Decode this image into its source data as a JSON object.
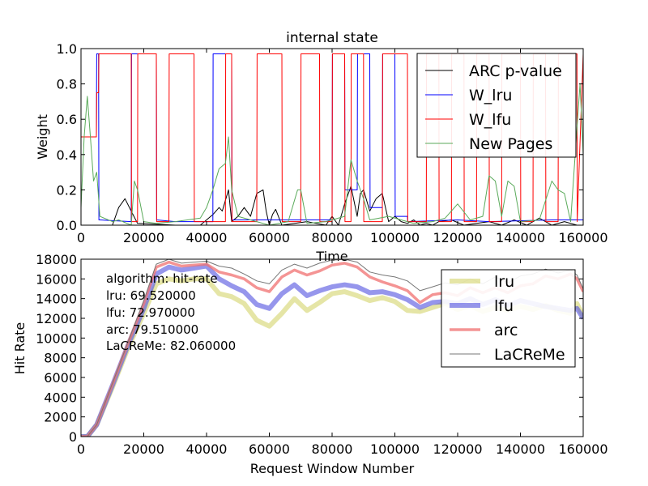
{
  "chart_data": [
    {
      "type": "line",
      "title": "internal state",
      "xlabel": "Time",
      "ylabel": "Weight",
      "xlim": [
        0,
        160000
      ],
      "ylim": [
        0,
        1.0
      ],
      "x_ticks": [
        "0",
        "20000",
        "40000",
        "60000",
        "80000",
        "100000",
        "120000",
        "140000",
        "160000"
      ],
      "y_ticks": [
        "0.0",
        "0.2",
        "0.4",
        "0.6",
        "0.8",
        "1.0"
      ],
      "legend_position": "top-right",
      "series": [
        {
          "name": "ARC p-value",
          "color": "#000000",
          "x": [
            0,
            10000,
            12000,
            14000,
            16000,
            18000,
            30000,
            38000,
            40000,
            42000,
            44000,
            45000,
            47000,
            48000,
            50000,
            52000,
            54000,
            56000,
            58000,
            59000,
            60000,
            61000,
            62000,
            64000,
            72000,
            78000,
            80000,
            82000,
            84000,
            86000,
            88000,
            89000,
            90000,
            92000,
            94000,
            96000,
            98000,
            100000,
            102000,
            104000,
            106000,
            108000,
            110000,
            112000,
            114000,
            118000,
            122000,
            126000,
            130000,
            134000,
            138000,
            142000,
            146000,
            150000,
            154000,
            158000,
            160000
          ],
          "y": [
            0.0,
            0.0,
            0.1,
            0.15,
            0.08,
            0.01,
            0.0,
            0.0,
            0.03,
            0.06,
            0.1,
            0.08,
            0.2,
            0.02,
            0.05,
            0.1,
            0.05,
            0.18,
            0.2,
            0.08,
            0.0,
            0.06,
            0.09,
            0.0,
            0.02,
            0.0,
            0.05,
            0.0,
            0.12,
            0.22,
            0.05,
            0.18,
            0.2,
            0.08,
            0.15,
            0.18,
            0.02,
            0.05,
            0.02,
            0.01,
            0.03,
            0.0,
            0.01,
            0.0,
            0.02,
            0.03,
            0.0,
            0.01,
            0.02,
            0.0,
            0.03,
            0.0,
            0.04,
            0.0,
            0.02,
            0.0,
            0.0
          ]
        },
        {
          "name": "W_lru",
          "color": "#0000ff",
          "x": [
            0,
            4900,
            5000,
            5600,
            5700,
            6000,
            16000,
            16100,
            24000,
            24100,
            30000,
            42000,
            42100,
            48000,
            48100,
            52000,
            80000,
            80100,
            84000,
            84100,
            88000,
            88100,
            92000,
            92100,
            96000,
            96100,
            100000,
            100100,
            104000,
            104100,
            120000,
            130000,
            150000,
            160000
          ],
          "y": [
            0.5,
            0.5,
            0.97,
            0.97,
            0.03,
            0.03,
            0.02,
            0.97,
            0.97,
            0.03,
            0.02,
            0.02,
            0.97,
            0.97,
            0.03,
            0.03,
            0.03,
            0.97,
            0.97,
            0.2,
            0.2,
            0.97,
            0.97,
            0.1,
            0.1,
            0.97,
            0.97,
            0.05,
            0.05,
            0.02,
            0.03,
            0.02,
            0.03,
            0.03
          ]
        },
        {
          "name": "W_lfu",
          "color": "#ff0000",
          "x": [
            0,
            4900,
            5000,
            5600,
            5700,
            16000,
            16100,
            18000,
            18100,
            24000,
            24100,
            28000,
            28100,
            36000,
            36100,
            46000,
            46100,
            48000,
            48100,
            56000,
            56100,
            64000,
            64100,
            70000,
            70100,
            76000,
            76100,
            80000,
            80100,
            84000,
            84100,
            86000,
            86100,
            90000,
            90100,
            96000,
            96100,
            104000,
            104100,
            110000,
            110100,
            114000,
            114100,
            118000,
            118100,
            122000,
            122100,
            126000,
            126100,
            130000,
            130100,
            134000,
            134100,
            140000,
            140100,
            144000,
            144100,
            148000,
            148100,
            152000,
            152100,
            158000,
            158100,
            160000
          ],
          "y": [
            0.5,
            0.5,
            0.75,
            0.75,
            0.97,
            0.97,
            0.02,
            0.02,
            0.97,
            0.97,
            0.02,
            0.02,
            0.97,
            0.97,
            0.02,
            0.02,
            0.97,
            0.97,
            0.02,
            0.02,
            0.97,
            0.97,
            0.02,
            0.02,
            0.97,
            0.97,
            0.02,
            0.02,
            0.97,
            0.97,
            0.02,
            0.02,
            0.97,
            0.97,
            0.02,
            0.02,
            0.97,
            0.97,
            0.02,
            0.02,
            0.97,
            0.97,
            0.02,
            0.02,
            0.97,
            0.97,
            0.02,
            0.02,
            0.97,
            0.97,
            0.02,
            0.02,
            0.97,
            0.97,
            0.02,
            0.02,
            0.97,
            0.97,
            0.02,
            0.02,
            0.97,
            0.97,
            0.02,
            0.97
          ]
        },
        {
          "name": "New Pages",
          "color": "#5aaa5a",
          "x": [
            0,
            1000,
            2000,
            3000,
            4000,
            5000,
            6000,
            10000,
            12000,
            16000,
            17000,
            18000,
            20000,
            24000,
            30000,
            38000,
            40000,
            42000,
            44000,
            46000,
            47000,
            48000,
            50000,
            54000,
            60000,
            66000,
            69000,
            70000,
            72000,
            78000,
            84000,
            86000,
            88000,
            90000,
            92000,
            98000,
            106000,
            112000,
            116000,
            120000,
            124000,
            128000,
            130000,
            132000,
            134000,
            136000,
            138000,
            140000,
            146000,
            150000,
            152000,
            154000,
            156000,
            158000,
            159000,
            160000
          ],
          "y": [
            0.1,
            0.5,
            0.73,
            0.5,
            0.25,
            0.3,
            0.05,
            0.02,
            0.03,
            0.0,
            0.25,
            0.2,
            0.02,
            0.01,
            0.02,
            0.04,
            0.1,
            0.2,
            0.32,
            0.35,
            0.5,
            0.2,
            0.05,
            0.03,
            0.0,
            0.02,
            0.2,
            0.2,
            0.01,
            0.02,
            0.05,
            0.37,
            0.25,
            0.15,
            0.03,
            0.05,
            0.01,
            0.02,
            0.04,
            0.12,
            0.03,
            0.05,
            0.28,
            0.25,
            0.05,
            0.25,
            0.22,
            0.02,
            0.03,
            0.25,
            0.2,
            0.18,
            0.02,
            0.55,
            0.8,
            0.4
          ]
        }
      ]
    },
    {
      "type": "line",
      "xlabel": "Request Window Number",
      "ylabel": "Hit Rate",
      "xlim": [
        0,
        160000
      ],
      "ylim": [
        0,
        18000
      ],
      "x_ticks": [
        "0",
        "20000",
        "40000",
        "60000",
        "80000",
        "100000",
        "120000",
        "140000",
        "160000"
      ],
      "y_ticks": [
        "0",
        "2000",
        "4000",
        "6000",
        "8000",
        "10000",
        "12000",
        "14000",
        "16000",
        "18000"
      ],
      "legend_position": "top-right",
      "annotation": [
        "algorithm:  hit-rate",
        "lru:  69.520000",
        "lfu:  72.970000",
        "arc:  79.510000",
        "LaCReMe:  82.060000"
      ],
      "series": [
        {
          "name": "lru",
          "color": "#d4d46a",
          "x": [
            0,
            2000,
            5000,
            10000,
            15000,
            20000,
            24000,
            28000,
            32000,
            36000,
            40000,
            44000,
            48000,
            52000,
            56000,
            60000,
            64000,
            68000,
            72000,
            76000,
            80000,
            84000,
            88000,
            92000,
            96000,
            100000,
            104000,
            108000,
            112000,
            116000,
            120000,
            124000,
            128000,
            132000,
            136000,
            140000,
            144000,
            148000,
            152000,
            156000,
            158000,
            160000
          ],
          "y": [
            0,
            0,
            1200,
            5000,
            9000,
            12500,
            15500,
            16000,
            15800,
            16000,
            16000,
            14500,
            14200,
            13500,
            11800,
            11200,
            12500,
            14000,
            12800,
            13600,
            14500,
            14700,
            14300,
            13800,
            14100,
            13700,
            12800,
            12700,
            13100,
            13500,
            12900,
            13300,
            12700,
            13100,
            12800,
            13200,
            12900,
            13300,
            12800,
            12500,
            13500,
            12200
          ]
        },
        {
          "name": "lfu",
          "color": "#5050e0",
          "x": [
            0,
            2000,
            5000,
            10000,
            15000,
            20000,
            24000,
            28000,
            32000,
            36000,
            40000,
            44000,
            48000,
            52000,
            56000,
            60000,
            64000,
            68000,
            72000,
            76000,
            80000,
            84000,
            88000,
            92000,
            96000,
            100000,
            104000,
            108000,
            112000,
            116000,
            120000,
            124000,
            128000,
            132000,
            136000,
            140000,
            144000,
            148000,
            152000,
            156000,
            158000,
            160000
          ],
          "y": [
            0,
            0,
            1200,
            5200,
            9300,
            13000,
            16500,
            17200,
            16900,
            17100,
            17300,
            16000,
            15300,
            14700,
            13400,
            13000,
            14500,
            15400,
            14300,
            14800,
            15200,
            15400,
            15200,
            14600,
            14700,
            14400,
            13900,
            13100,
            13600,
            13700,
            13500,
            14000,
            13400,
            13900,
            13300,
            13800,
            13500,
            13200,
            13000,
            12800,
            13000,
            12000
          ]
        },
        {
          "name": "arc",
          "color": "#f07070",
          "x": [
            0,
            2000,
            5000,
            10000,
            15000,
            20000,
            24000,
            28000,
            32000,
            36000,
            40000,
            44000,
            48000,
            52000,
            56000,
            60000,
            64000,
            68000,
            72000,
            76000,
            80000,
            84000,
            88000,
            92000,
            96000,
            100000,
            104000,
            108000,
            112000,
            116000,
            120000,
            124000,
            128000,
            132000,
            136000,
            140000,
            144000,
            148000,
            152000,
            156000,
            158000,
            160000
          ],
          "y": [
            0,
            0,
            1200,
            5300,
            9500,
            13500,
            17200,
            17700,
            17300,
            17400,
            17500,
            16700,
            16400,
            16000,
            15100,
            14700,
            16200,
            16900,
            16400,
            16800,
            17400,
            17600,
            17200,
            16200,
            15700,
            15300,
            14800,
            13600,
            14400,
            14600,
            14300,
            15100,
            14600,
            15100,
            14600,
            15300,
            15500,
            16300,
            16000,
            16500,
            16000,
            14700
          ]
        },
        {
          "name": "LaCReMe",
          "color": "#777777",
          "x": [
            0,
            2000,
            5000,
            10000,
            15000,
            20000,
            24000,
            28000,
            32000,
            36000,
            40000,
            44000,
            48000,
            52000,
            56000,
            60000,
            64000,
            68000,
            72000,
            76000,
            80000,
            84000,
            88000,
            92000,
            96000,
            100000,
            104000,
            108000,
            112000,
            116000,
            120000,
            124000,
            128000,
            132000,
            136000,
            140000,
            144000,
            148000,
            152000,
            156000,
            158000,
            160000
          ],
          "y": [
            0,
            0,
            1200,
            5400,
            9600,
            13800,
            17500,
            18000,
            17600,
            17700,
            17800,
            17300,
            17100,
            16500,
            15800,
            15500,
            16900,
            17500,
            17100,
            17600,
            17900,
            18000,
            17700,
            16700,
            16400,
            16200,
            15800,
            14800,
            15200,
            15600,
            15400,
            16000,
            15500,
            16200,
            15600,
            16300,
            16500,
            17000,
            16600,
            16900,
            16400,
            15000
          ]
        }
      ]
    }
  ]
}
